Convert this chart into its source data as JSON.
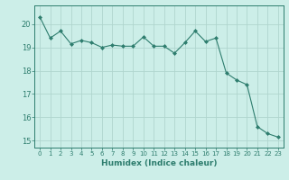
{
  "x": [
    0,
    1,
    2,
    3,
    4,
    5,
    6,
    7,
    8,
    9,
    10,
    11,
    12,
    13,
    14,
    15,
    16,
    17,
    18,
    19,
    20,
    21,
    22,
    23
  ],
  "y": [
    20.3,
    19.4,
    19.7,
    19.15,
    19.3,
    19.2,
    19.0,
    19.1,
    19.05,
    19.05,
    19.45,
    19.05,
    19.05,
    18.75,
    19.2,
    19.7,
    19.25,
    19.4,
    17.9,
    17.6,
    17.4,
    15.6,
    15.3,
    15.15
  ],
  "line_color": "#2e7d6e",
  "marker": "D",
  "marker_size": 2,
  "bg_color": "#cceee8",
  "grid_color": "#b0d5ce",
  "xlabel": "Humidex (Indice chaleur)",
  "ylim": [
    14.7,
    20.8
  ],
  "xlim": [
    -0.5,
    23.5
  ],
  "yticks": [
    15,
    16,
    17,
    18,
    19,
    20
  ],
  "xticks": [
    0,
    1,
    2,
    3,
    4,
    5,
    6,
    7,
    8,
    9,
    10,
    11,
    12,
    13,
    14,
    15,
    16,
    17,
    18,
    19,
    20,
    21,
    22,
    23
  ],
  "tick_color": "#2e7d6e",
  "label_color": "#2e7d6e",
  "spine_color": "#2e7d6e"
}
